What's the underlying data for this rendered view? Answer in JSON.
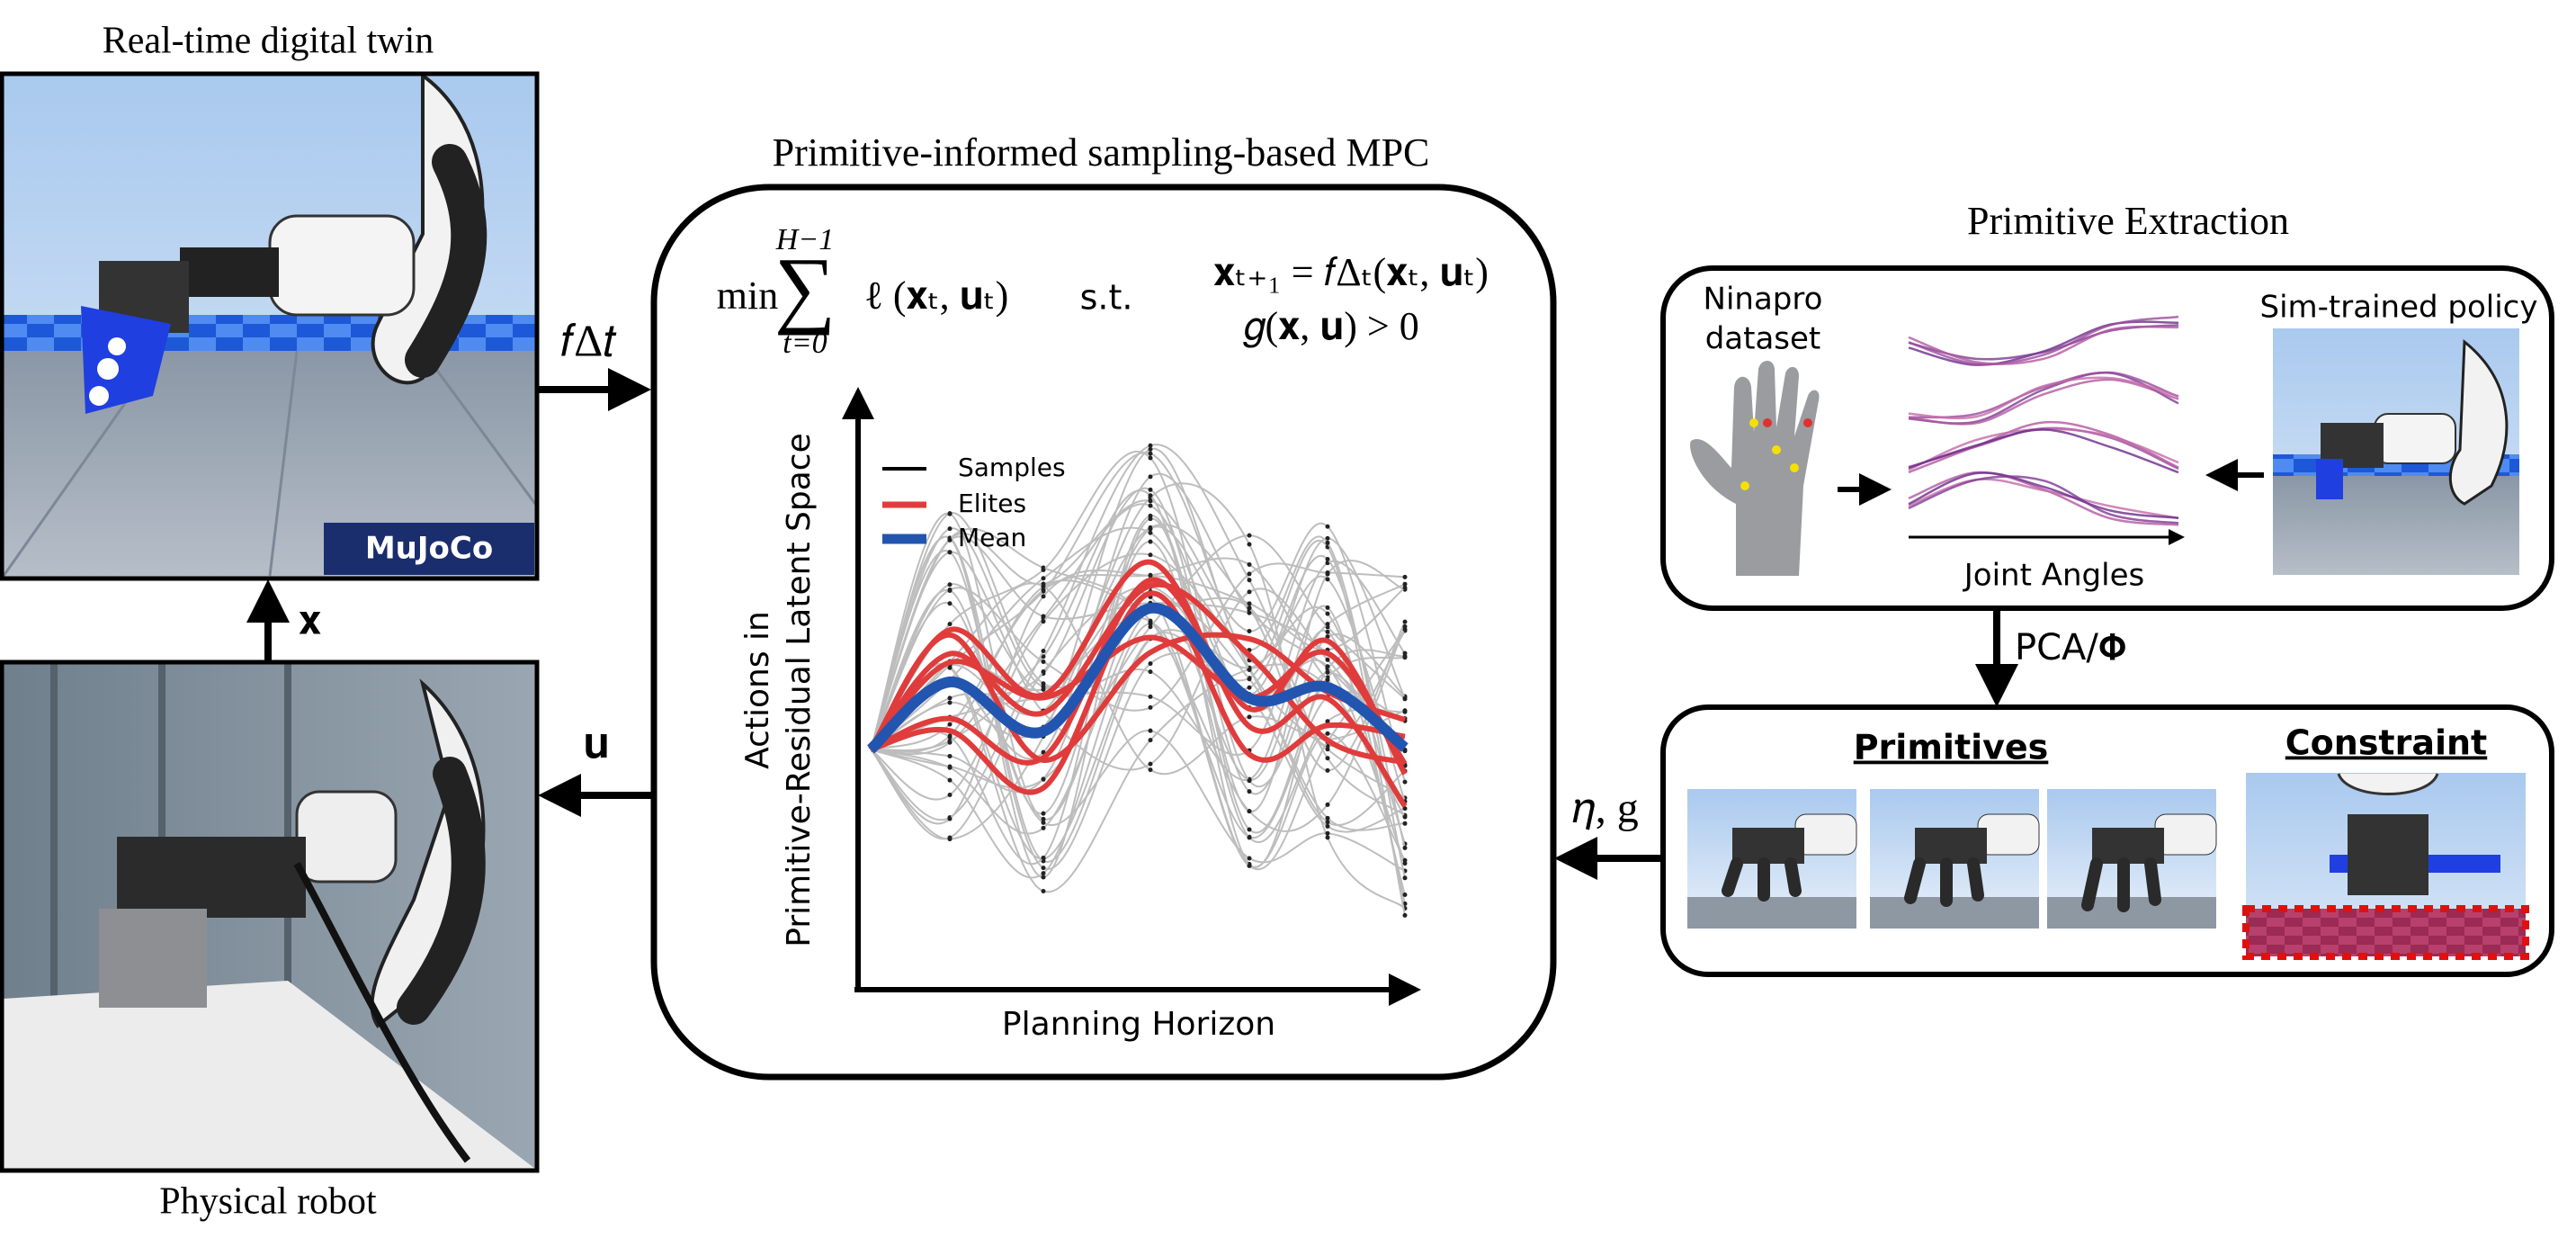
{
  "left": {
    "top_title": "Real-time digital twin",
    "sim_label": "MuJoCo",
    "bottom_title": "Physical robot"
  },
  "arrows": {
    "dynamics": "𝑓Δ𝑡",
    "state": "𝐱",
    "control": "𝐮",
    "params": "𝜂, g",
    "pca": "PCA/𝚽"
  },
  "mpc": {
    "title": "Primitive-informed sampling-based MPC",
    "objective": {
      "min": "min",
      "sum": "∑",
      "upper": "H−1",
      "lower": "t=0",
      "cost": "ℓ (𝐱ₜ, 𝐮ₜ)"
    },
    "subject_to": "s.t.",
    "dynamics_constraint": "𝐱ₜ₊₁ = 𝑓Δₜ(𝐱ₜ, 𝐮ₜ)",
    "inequality": "𝑔(𝐱, 𝐮) > 0",
    "plot": {
      "y_label": [
        "Actions in",
        "Primitive-Residual Latent Space"
      ],
      "x_label": "Planning Horizon",
      "legend": [
        "Samples",
        "Elites",
        "Mean"
      ]
    }
  },
  "extraction": {
    "title": "Primitive Extraction",
    "dataset": [
      "Ninapro",
      "dataset"
    ],
    "policy": "Sim-trained policy",
    "axis": "Joint Angles"
  },
  "library": {
    "primitives": "Primitives",
    "constraint": "Constraint"
  }
}
